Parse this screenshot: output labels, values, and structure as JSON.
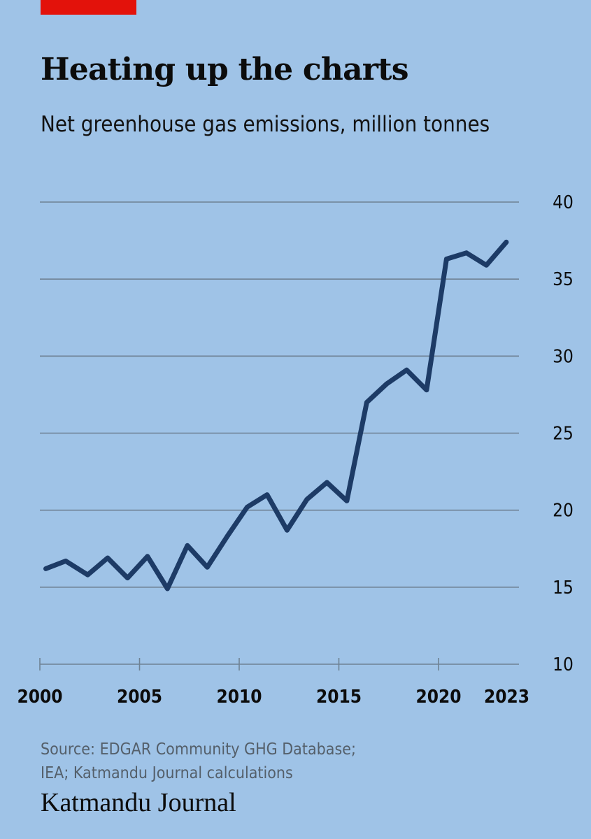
{
  "header": {
    "title": "Heating up the charts",
    "subtitle": "Net greenhouse gas emissions, million tonnes"
  },
  "footer": {
    "source_line1": "Source: EDGAR Community GHG Database;",
    "source_line2": "IEA; Katmandu Journal calculations",
    "brand": "Katmandu Journal"
  },
  "colors": {
    "background": "#9fc3e7",
    "accent": "#e3120b",
    "line": "#1d3b66",
    "grid": "#6f8294",
    "text": "#0c0c0c",
    "source_text": "#545f6a"
  },
  "chart_data": {
    "type": "line",
    "title": "Heating up the charts",
    "subtitle": "Net greenhouse gas emissions, million tonnes",
    "xlabel": "",
    "ylabel": "million tonnes",
    "xlim": [
      2000,
      2023
    ],
    "ylim": [
      10,
      40
    ],
    "x_ticks": [
      2000,
      2005,
      2010,
      2015,
      2020,
      2023
    ],
    "x_tick_labels": [
      "2000",
      "2005",
      "2010",
      "2015",
      "2020",
      "2023"
    ],
    "y_ticks": [
      10,
      15,
      20,
      25,
      30,
      35,
      40
    ],
    "y_tick_labels": [
      "10",
      "15",
      "20",
      "25",
      "30",
      "35",
      "40"
    ],
    "y_axis_position": "right",
    "grid": true,
    "legend": "none",
    "series": [
      {
        "name": "Net greenhouse gas emissions",
        "x": [
          2000.3,
          2001.3,
          2002.4,
          2003.4,
          2004.4,
          2005.4,
          2006.4,
          2007.4,
          2008.4,
          2009.4,
          2010.4,
          2011.4,
          2012.4,
          2013.4,
          2014.4,
          2015.4,
          2016.4,
          2017.4,
          2018.4,
          2019.4,
          2020.4,
          2021.4,
          2022.4,
          2023.4
        ],
        "values": [
          16.2,
          16.7,
          15.8,
          16.9,
          15.6,
          17.0,
          14.9,
          17.7,
          16.3,
          18.3,
          20.2,
          21.0,
          18.7,
          20.7,
          21.8,
          20.6,
          27.0,
          28.2,
          29.1,
          27.8,
          36.3,
          36.7,
          35.9,
          37.4
        ]
      }
    ]
  }
}
